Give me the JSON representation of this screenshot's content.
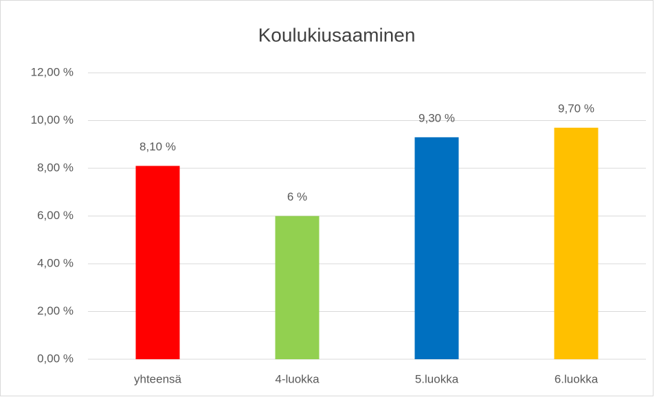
{
  "chart_data": {
    "type": "bar",
    "title": "Koulukiusaaminen",
    "categories": [
      "yhteensä",
      "4-luokka",
      "5.luokka",
      "6.luokka"
    ],
    "values": [
      8.1,
      6,
      9.3,
      9.7
    ],
    "value_labels": [
      "8,10 %",
      "6 %",
      "9,30 %",
      "9,70 %"
    ],
    "colors": [
      "#ff0000",
      "#92d050",
      "#0070c0",
      "#ffc000"
    ],
    "ylim": [
      0,
      12
    ],
    "yticks": [
      {
        "value": 0,
        "label": "0,00 %"
      },
      {
        "value": 2,
        "label": "2,00 %"
      },
      {
        "value": 4,
        "label": "4,00 %"
      },
      {
        "value": 6,
        "label": "6,00 %"
      },
      {
        "value": 8,
        "label": "8,00 %"
      },
      {
        "value": 10,
        "label": "10,00 %"
      },
      {
        "value": 12,
        "label": "12,00 %"
      }
    ],
    "grid": true
  }
}
